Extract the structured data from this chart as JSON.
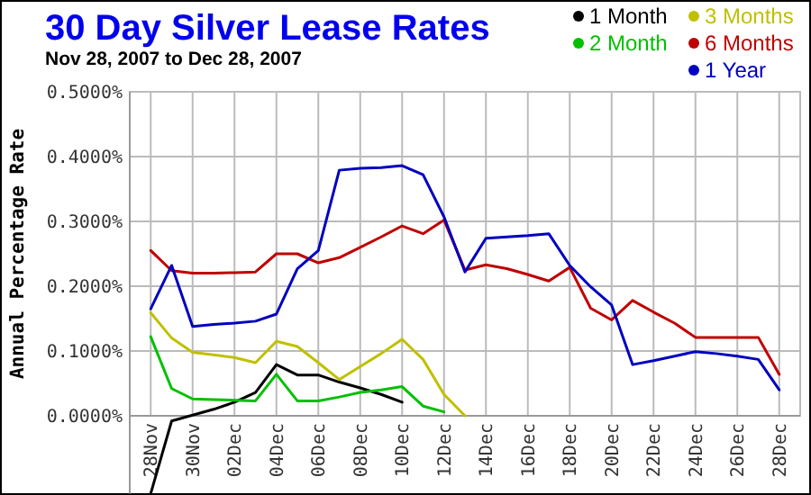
{
  "chart_data": {
    "type": "line",
    "title": "30 Day Silver Lease Rates",
    "subtitle": "Nov 28, 2007 to Dec 28, 2007",
    "ylabel": "Annual Percentage Rate",
    "x": [
      "2007-11-28",
      "2007-11-29",
      "2007-11-30",
      "2007-12-01",
      "2007-12-02",
      "2007-12-03",
      "2007-12-04",
      "2007-12-05",
      "2007-12-06",
      "2007-12-07",
      "2007-12-08",
      "2007-12-09",
      "2007-12-10",
      "2007-12-11",
      "2007-12-12",
      "2007-12-13",
      "2007-12-14",
      "2007-12-15",
      "2007-12-16",
      "2007-12-17",
      "2007-12-18",
      "2007-12-19",
      "2007-12-20",
      "2007-12-21",
      "2007-12-22",
      "2007-12-23",
      "2007-12-24",
      "2007-12-25",
      "2007-12-26",
      "2007-12-27",
      "2007-12-28"
    ],
    "series": [
      {
        "name": "1 Month",
        "color": "#000000",
        "values": [
          -0.12,
          -0.008,
          0.001,
          0.01,
          0.021,
          0.036,
          0.079,
          0.063,
          0.063,
          0.052,
          0.043,
          0.033,
          0.021,
          null,
          null,
          null,
          null,
          null,
          null,
          null,
          null,
          null,
          null,
          null,
          null,
          null,
          null,
          null,
          null,
          null,
          null
        ]
      },
      {
        "name": "2 Month",
        "color": "#00c000",
        "values": [
          0.122,
          0.042,
          0.026,
          0.025,
          0.024,
          0.023,
          0.064,
          0.023,
          0.023,
          0.029,
          0.036,
          0.04,
          0.045,
          0.015,
          0.006,
          null,
          null,
          null,
          null,
          null,
          null,
          null,
          null,
          null,
          null,
          null,
          null,
          null,
          null,
          null,
          null
        ]
      },
      {
        "name": "3 Months",
        "color": "#c0c000",
        "values": [
          0.159,
          0.12,
          0.098,
          0.094,
          0.09,
          0.082,
          0.115,
          0.107,
          0.082,
          0.056,
          0.076,
          0.096,
          0.118,
          0.087,
          0.033,
          0.0,
          null,
          null,
          null,
          null,
          null,
          null,
          null,
          null,
          null,
          null,
          null,
          null,
          null,
          null,
          null
        ]
      },
      {
        "name": "6 Months",
        "color": "#c00000",
        "values": [
          0.255,
          0.224,
          0.22,
          0.22,
          0.221,
          0.222,
          0.25,
          0.25,
          0.236,
          0.244,
          0.26,
          0.276,
          0.293,
          0.281,
          0.302,
          0.225,
          0.233,
          0.227,
          0.218,
          0.208,
          0.229,
          0.166,
          0.148,
          0.178,
          0.16,
          0.143,
          0.121,
          0.121,
          0.121,
          0.121,
          0.064
        ]
      },
      {
        "name": "1 Year",
        "color": "#0000c0",
        "values": [
          0.165,
          0.232,
          0.138,
          0.141,
          0.143,
          0.146,
          0.157,
          0.227,
          0.255,
          0.379,
          0.382,
          0.383,
          0.386,
          0.372,
          0.307,
          0.222,
          0.274,
          0.276,
          0.278,
          0.281,
          0.232,
          0.199,
          0.171,
          0.079,
          0.085,
          0.092,
          0.099,
          0.096,
          0.092,
          0.087,
          0.04
        ]
      }
    ],
    "xlim": [
      "2007-11-27",
      "2007-12-29"
    ],
    "xticks": [
      {
        "value": "2007-11-28",
        "label": "28Nov"
      },
      {
        "value": "2007-11-30",
        "label": "30Nov"
      },
      {
        "value": "2007-12-02",
        "label": "02Dec"
      },
      {
        "value": "2007-12-04",
        "label": "04Dec"
      },
      {
        "value": "2007-12-06",
        "label": "06Dec"
      },
      {
        "value": "2007-12-08",
        "label": "08Dec"
      },
      {
        "value": "2007-12-10",
        "label": "10Dec"
      },
      {
        "value": "2007-12-12",
        "label": "12Dec"
      },
      {
        "value": "2007-12-14",
        "label": "14Dec"
      },
      {
        "value": "2007-12-16",
        "label": "16Dec"
      },
      {
        "value": "2007-12-18",
        "label": "18Dec"
      },
      {
        "value": "2007-12-20",
        "label": "20Dec"
      },
      {
        "value": "2007-12-22",
        "label": "22Dec"
      },
      {
        "value": "2007-12-24",
        "label": "24Dec"
      },
      {
        "value": "2007-12-26",
        "label": "26Dec"
      },
      {
        "value": "2007-12-28",
        "label": "28Dec"
      }
    ],
    "ylim": [
      -0.12,
      0.5
    ],
    "yticks": [
      {
        "value": 0,
        "label": "0.0000%"
      },
      {
        "value": 0.1,
        "label": "0.1000%"
      },
      {
        "value": 0.2,
        "label": "0.2000%"
      },
      {
        "value": 0.3,
        "label": "0.3000%"
      },
      {
        "value": 0.4,
        "label": "0.4000%"
      },
      {
        "value": 0.5,
        "label": "0.5000%"
      }
    ],
    "grid": true,
    "legend": "top right",
    "marker": "none",
    "line_style": "solid"
  }
}
